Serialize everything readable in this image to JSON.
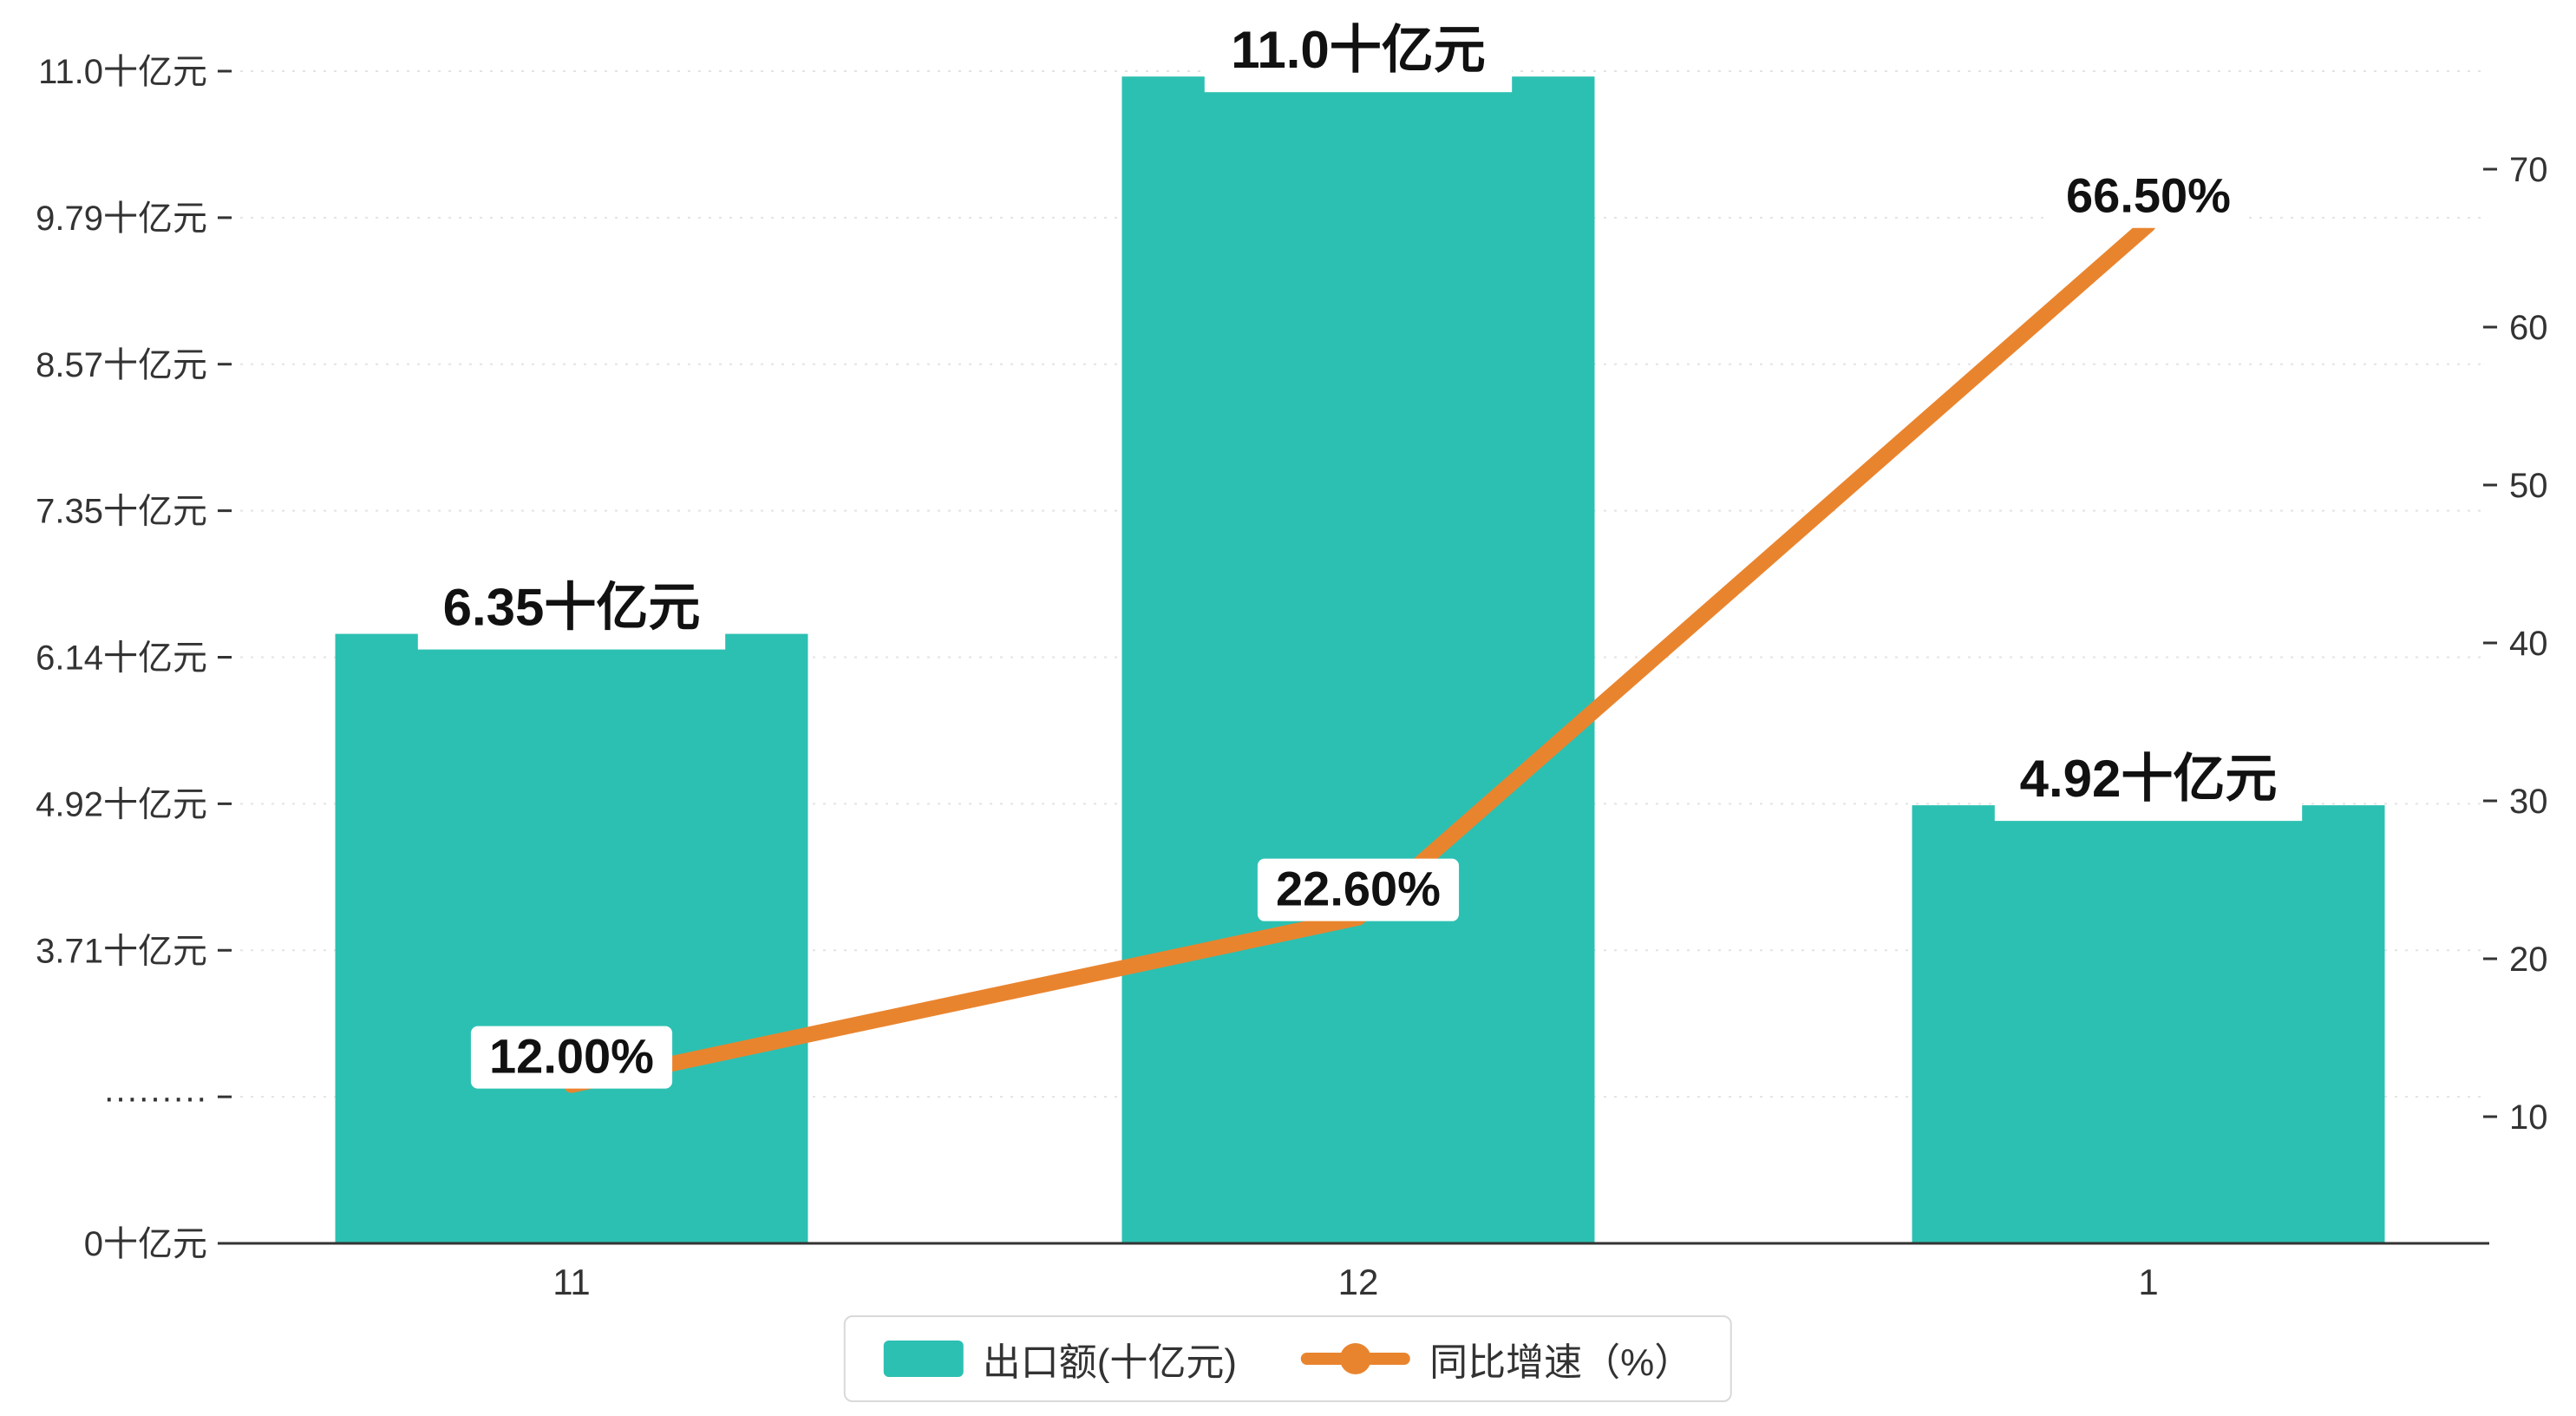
{
  "chart_data": {
    "type": "bar",
    "categories": [
      "11",
      "12",
      "1"
    ],
    "series": [
      {
        "name": "出口额(十亿元)",
        "type": "bar",
        "axis": "left",
        "values": [
          6.35,
          11.0,
          4.92
        ],
        "value_labels": [
          "6.35十亿元",
          "11.0十亿元",
          "4.92十亿元"
        ],
        "color": "#2cc0b2"
      },
      {
        "name": "同比增速（%）",
        "type": "line",
        "axis": "right",
        "values": [
          12.0,
          22.6,
          66.5
        ],
        "value_labels": [
          "12.00%",
          "22.60%",
          "66.50%"
        ],
        "color": "#e9842e"
      }
    ],
    "left_axis": {
      "unit": "十亿元",
      "tick_labels_bottom_to_top": [
        "0十亿元",
        "·········",
        "3.71十亿元",
        "4.92十亿元",
        "6.14十亿元",
        "7.35十亿元",
        "8.57十亿元",
        "9.79十亿元",
        "11.0十亿元"
      ],
      "tick_values_bottom_to_top": [
        0,
        null,
        3.71,
        4.92,
        6.14,
        7.35,
        8.57,
        9.79,
        11.0
      ],
      "max": 11.0
    },
    "right_axis": {
      "unit": "%",
      "tick_labels_bottom_to_top": [
        "10",
        "20",
        "30",
        "40",
        "50",
        "60",
        "70"
      ],
      "min": 10,
      "max": 70
    },
    "title": "",
    "grid": "dotted-horizontal",
    "legend_position": "bottom-center"
  },
  "legend": {
    "items": [
      {
        "label": "出口额(十亿元)",
        "color": "#2cc0b2",
        "type": "bar"
      },
      {
        "label": "同比增速（%）",
        "color": "#e9842e",
        "type": "line"
      }
    ]
  },
  "colors": {
    "bar": "#2cc0b2",
    "line": "#e9842e",
    "axis": "#333333",
    "tick_text": "#333333",
    "gridline": "#e3e3e3",
    "label_text": "#111111",
    "background": "#ffffff"
  }
}
